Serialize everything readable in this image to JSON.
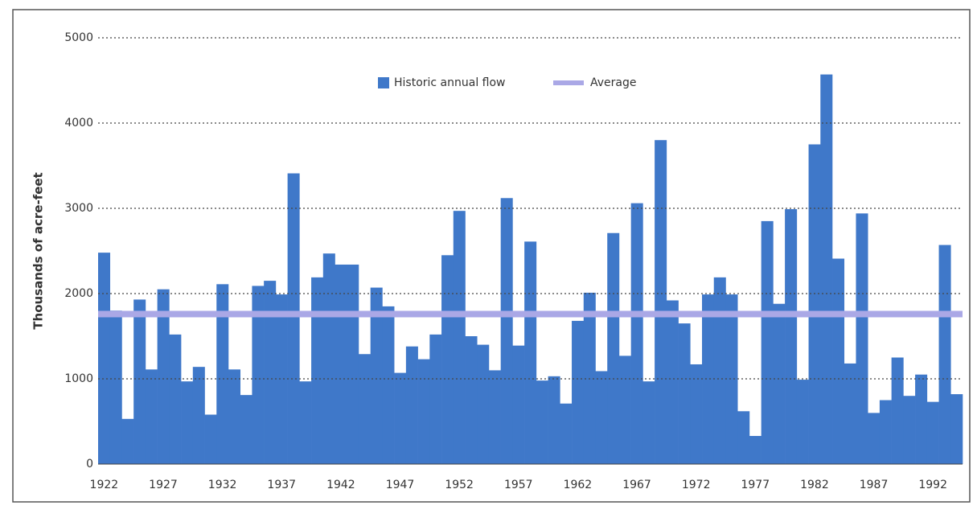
{
  "chart_data": {
    "type": "bar",
    "y_label": "Thousands of acre-feet",
    "categories": [
      "1922",
      null,
      null,
      null,
      null,
      "1927",
      null,
      null,
      null,
      null,
      "1932",
      null,
      null,
      null,
      null,
      "1937",
      null,
      null,
      null,
      null,
      "1942",
      null,
      null,
      null,
      null,
      "1947",
      null,
      null,
      null,
      null,
      "1952",
      null,
      null,
      null,
      null,
      "1957",
      null,
      null,
      null,
      null,
      "1962",
      null,
      null,
      null,
      null,
      "1967",
      null,
      null,
      null,
      null,
      "1972",
      null,
      null,
      null,
      null,
      "1977",
      null,
      null,
      null,
      null,
      "1982",
      null,
      null,
      null,
      null,
      "1987",
      null,
      null,
      null,
      null,
      "1992",
      null,
      null
    ],
    "series": [
      {
        "name": "Historic annual flow",
        "color": "#3f78c9",
        "values": [
          2480,
          1800,
          530,
          1930,
          1110,
          2050,
          1520,
          970,
          1140,
          580,
          2110,
          1110,
          810,
          2090,
          2150,
          1990,
          3410,
          970,
          2190,
          2470,
          2340,
          2340,
          1290,
          2070,
          1850,
          1070,
          1380,
          1230,
          1520,
          2450,
          2970,
          1500,
          1400,
          1100,
          3120,
          1390,
          2610,
          980,
          1030,
          710,
          1680,
          2010,
          1090,
          2710,
          1270,
          3060,
          970,
          3800,
          1920,
          1650,
          1170,
          1990,
          2190,
          1990,
          620,
          330,
          2850,
          1880,
          2990,
          990,
          3750,
          4570,
          2410,
          1180,
          2940,
          600,
          750,
          1250,
          800,
          1050,
          730,
          2570,
          820
        ]
      }
    ],
    "average": {
      "name": "Average",
      "color": "#aaa8e6",
      "value": 1760
    },
    "ylim": [
      0,
      5000
    ],
    "yticks": [
      0,
      1000,
      2000,
      3000,
      4000,
      5000
    ],
    "grid": true
  }
}
